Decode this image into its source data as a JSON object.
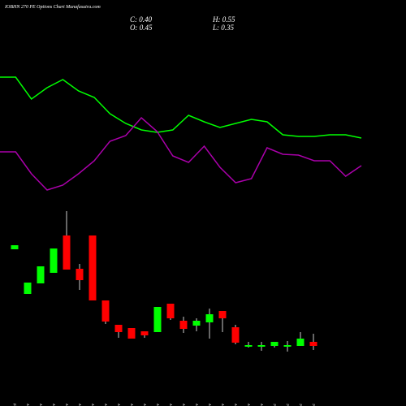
{
  "chart_data": {
    "type": "candlestick",
    "title": "IOBHN 270 PE Options Chart Munafasutra.com",
    "ohlc_labels": [
      "C: 0.40",
      "H: 0.55",
      "O: 0.45",
      "L: 0.35"
    ],
    "categories": [
      "27 Oct",
      "03 Nov",
      "04 Nov",
      "06 Nov",
      "07 Nov",
      "10 Nov",
      "11 Nov",
      "12 Nov",
      "13 Nov",
      "14 Nov",
      "17 Nov",
      "18 Nov",
      "19 Nov",
      "20 Nov",
      "21 Nov",
      "24 Nov",
      "25 Nov",
      "26 Nov",
      "27 Nov",
      "28 Nov",
      "01 Dec",
      "02 Dec",
      "03 Dec",
      "04 Dec"
    ],
    "open": [
      1.59,
      1.04,
      1.17,
      1.3,
      1.76,
      1.35,
      1.76,
      0.96,
      0.66,
      0.62,
      0.58,
      0.57,
      0.92,
      0.71,
      0.65,
      0.69,
      0.83,
      0.63,
      0.39,
      0.41,
      0.4,
      0.41,
      0.4,
      0.45
    ],
    "high": [
      1.64,
      1.18,
      1.38,
      1.6,
      2.06,
      1.41,
      1.76,
      0.96,
      0.66,
      0.62,
      0.58,
      0.88,
      0.92,
      0.76,
      0.74,
      0.86,
      0.83,
      0.66,
      0.45,
      0.45,
      0.45,
      0.46,
      0.57,
      0.55
    ],
    "low": [
      1.59,
      1.04,
      1.17,
      1.3,
      1.34,
      1.09,
      0.96,
      0.67,
      0.5,
      0.49,
      0.5,
      0.57,
      0.72,
      0.56,
      0.58,
      0.49,
      0.57,
      0.42,
      0.38,
      0.34,
      0.38,
      0.33,
      0.4,
      0.35
    ],
    "close": [
      1.64,
      1.18,
      1.38,
      1.6,
      1.34,
      1.21,
      0.96,
      0.7,
      0.57,
      0.49,
      0.53,
      0.88,
      0.74,
      0.61,
      0.71,
      0.79,
      0.74,
      0.44,
      0.41,
      0.41,
      0.45,
      0.41,
      0.49,
      0.4
    ],
    "up_color": "#00ff00",
    "down_color": "#ff0000",
    "ylim": [
      0,
      4.66
    ],
    "lines": [
      {
        "color": "#00ff00",
        "values": [
          155,
          155,
          128,
          142,
          152,
          138,
          130,
          110,
          98,
          90,
          87,
          90,
          108,
          100,
          93,
          98,
          103,
          100,
          84,
          82,
          82,
          84,
          84,
          80
        ]
      },
      {
        "color": "#aa00aa",
        "values": [
          63,
          63,
          36,
          16,
          22,
          36,
          52,
          76,
          83,
          105,
          88,
          58,
          50,
          70,
          44,
          25,
          30,
          68,
          60,
          59,
          52,
          52,
          33,
          46
        ]
      }
    ],
    "y2lim": [
      0,
      250
    ]
  }
}
